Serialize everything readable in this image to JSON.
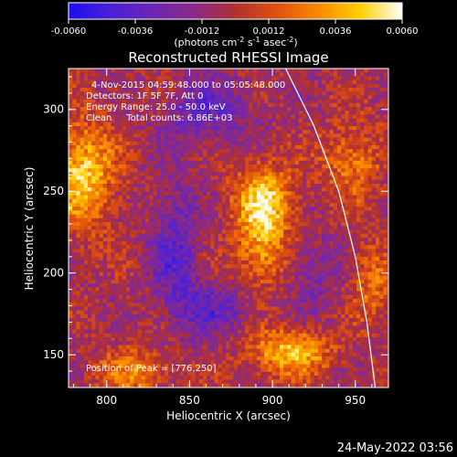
{
  "chart_data": {
    "type": "heatmap",
    "title": "Reconstructed RHESSI Image",
    "xlabel": "Heliocentric X (arcsec)",
    "ylabel": "Heliocentric Y (arcsec)",
    "xlim": [
      777,
      970
    ],
    "ylim": [
      130,
      325
    ],
    "x_ticks": [
      800,
      850,
      900,
      950
    ],
    "y_ticks": [
      150,
      200,
      250,
      300
    ],
    "colorbar": {
      "min": -0.006,
      "max": 0.006,
      "ticks": [
        "-0.0060",
        "-0.0036",
        "-0.0012",
        "0.0012",
        "0.0036",
        "0.0060"
      ],
      "label_parts": [
        "(photons cm",
        "-2",
        " s",
        "-1",
        " asec",
        "-2",
        ")"
      ],
      "colormap": [
        "#1c0cf0",
        "#4a20d8",
        "#6a26b4",
        "#8a2a88",
        "#b03030",
        "#e05010",
        "#f88a00",
        "#ffd000",
        "#ffffff"
      ]
    },
    "annotations": [
      "4-Nov-2015 04:59:48.000 to 05:05:48.000",
      "Detectors: 1F 5F 7F, Att 0",
      "Energy Range: 25.0 - 50.0 keV",
      "Clean     Total counts: 6.86E+03"
    ],
    "peak_label": "Position of Peak = [776,250]",
    "sources": [
      {
        "x": 785,
        "y": 260,
        "sx": 14,
        "sy": 22,
        "amp": 0.005
      },
      {
        "x": 895,
        "y": 243,
        "sx": 13,
        "sy": 16,
        "amp": 0.0052
      },
      {
        "x": 893,
        "y": 210,
        "sx": 10,
        "sy": 14,
        "amp": 0.0032
      },
      {
        "x": 910,
        "y": 152,
        "sx": 17,
        "sy": 10,
        "amp": 0.0046
      },
      {
        "x": 818,
        "y": 140,
        "sx": 16,
        "sy": 10,
        "amp": 0.003
      },
      {
        "x": 948,
        "y": 268,
        "sx": 12,
        "sy": 16,
        "amp": 0.003
      },
      {
        "x": 960,
        "y": 195,
        "sx": 8,
        "sy": 16,
        "amp": 0.0026
      },
      {
        "x": 842,
        "y": 215,
        "sx": 10,
        "sy": 30,
        "amp": -0.003
      },
      {
        "x": 860,
        "y": 300,
        "sx": 18,
        "sy": 14,
        "amp": -0.0028
      },
      {
        "x": 865,
        "y": 178,
        "sx": 16,
        "sy": 12,
        "amp": -0.0026
      },
      {
        "x": 925,
        "y": 200,
        "sx": 10,
        "sy": 18,
        "amp": -0.0018
      }
    ],
    "limb": [
      [
        908,
        325
      ],
      [
        925,
        290
      ],
      [
        940,
        250
      ],
      [
        950,
        210
      ],
      [
        957,
        170
      ],
      [
        962,
        130
      ]
    ]
  },
  "footer": {
    "date": "24-May-2022 03:56"
  }
}
